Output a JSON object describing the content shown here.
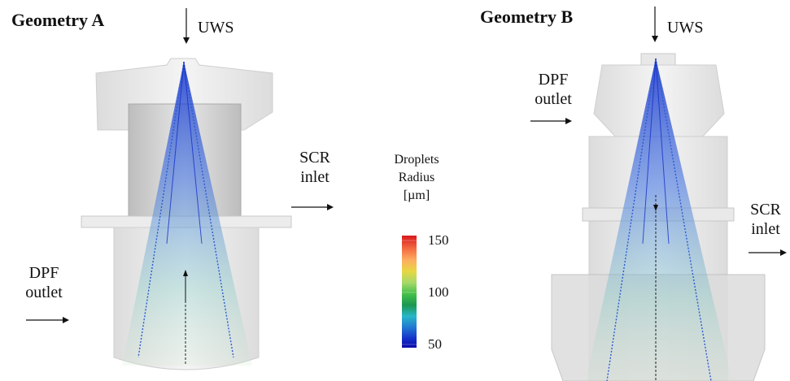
{
  "geometry_a": {
    "title": "Geometry A",
    "uws_label": "UWS",
    "scr_label_line1": "SCR",
    "scr_label_line2": "inlet",
    "dpf_label_line1": "DPF",
    "dpf_label_line2": "outlet"
  },
  "geometry_b": {
    "title": "Geometry B",
    "uws_label": "UWS",
    "dpf_label_line1": "DPF",
    "dpf_label_line2": "outlet",
    "scr_label_line1": "SCR",
    "scr_label_line2": "inlet"
  },
  "legend": {
    "title_line1": "Droplets",
    "title_line2": "Radius",
    "title_line3": "[µm]",
    "ticks": [
      "150",
      "100",
      "50"
    ],
    "colors": [
      "#d7191c",
      "#f46d43",
      "#fdae61",
      "#fee08b",
      "#d9ef8b",
      "#a6d96a",
      "#66bd63",
      "#1a9850",
      "#29b6c8",
      "#1f78d1",
      "#1330c9",
      "#0a0aa8"
    ]
  }
}
